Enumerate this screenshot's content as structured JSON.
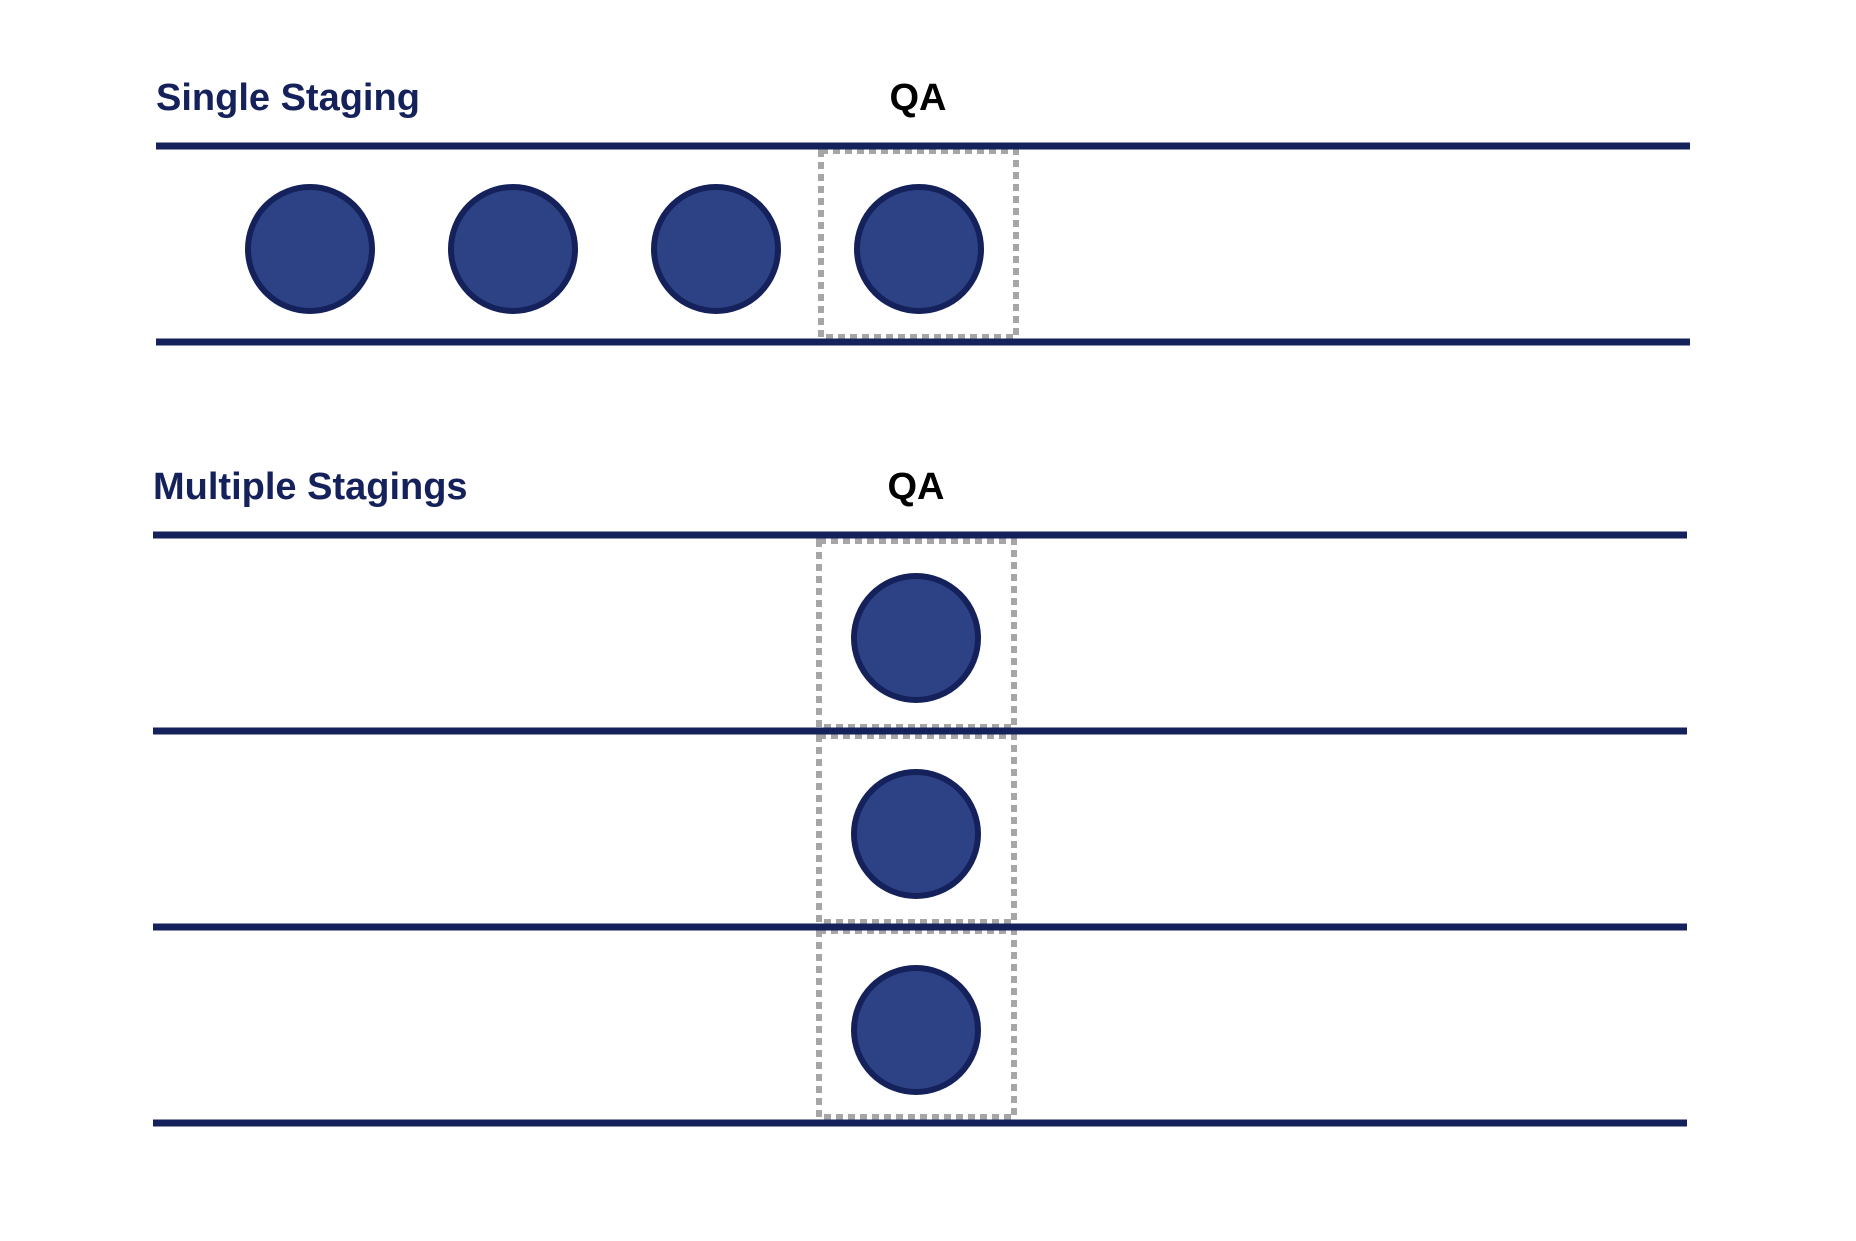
{
  "colors": {
    "title": "#14215a",
    "qa_label": "#000000",
    "lane_line": "#14215a",
    "item_fill": "#2d4285",
    "item_stroke": "#14215a",
    "qa_box_dash": "#a6a6a6",
    "background": "#ffffff"
  },
  "sections": [
    {
      "title": "Single Staging",
      "qa_label": "QA",
      "lanes": [
        {
          "items": 4
        }
      ]
    },
    {
      "title": "Multiple Stagings",
      "qa_label": "QA",
      "lanes": [
        {
          "items": 1
        },
        {
          "items": 1
        },
        {
          "items": 1
        }
      ]
    }
  ]
}
